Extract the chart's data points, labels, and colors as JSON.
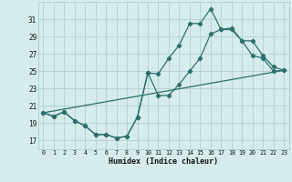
{
  "title": "",
  "xlabel": "Humidex (Indice chaleur)",
  "ylabel": "",
  "bg_color": "#d6ecec",
  "grid_color": "#afd0d0",
  "line_color": "#2d6e6e",
  "marker_color": "#2d6e6e",
  "x_ticks": [
    0,
    1,
    2,
    3,
    4,
    5,
    6,
    7,
    8,
    9,
    10,
    11,
    12,
    13,
    14,
    15,
    16,
    17,
    18,
    19,
    20,
    21,
    22,
    23
  ],
  "y_ticks": [
    17,
    19,
    21,
    23,
    25,
    27,
    29,
    31
  ],
  "xlim": [
    -0.5,
    23.5
  ],
  "ylim": [
    16.0,
    33.0
  ],
  "series1_x": [
    0,
    1,
    2,
    3,
    4,
    5,
    6,
    7,
    8,
    9,
    10,
    11,
    12,
    13,
    14,
    15,
    16,
    17,
    18,
    19,
    20,
    21,
    22,
    23
  ],
  "series1_y": [
    20.2,
    19.8,
    20.3,
    19.3,
    18.7,
    17.7,
    17.7,
    17.3,
    17.5,
    19.7,
    24.8,
    24.7,
    26.5,
    28.0,
    30.5,
    30.5,
    32.2,
    29.8,
    30.0,
    28.5,
    28.5,
    26.8,
    25.5,
    25.1
  ],
  "series2_x": [
    0,
    1,
    2,
    3,
    4,
    5,
    6,
    7,
    8,
    9,
    10,
    11,
    12,
    13,
    14,
    15,
    16,
    17,
    18,
    19,
    20,
    21,
    22,
    23
  ],
  "series2_y": [
    20.2,
    19.8,
    20.3,
    19.3,
    18.7,
    17.7,
    17.7,
    17.3,
    17.5,
    19.7,
    24.8,
    22.2,
    22.2,
    23.5,
    25.0,
    26.5,
    29.3,
    29.8,
    29.8,
    28.5,
    26.8,
    26.5,
    25.0,
    25.1
  ],
  "series3_x": [
    0,
    23
  ],
  "series3_y": [
    20.2,
    25.1
  ]
}
